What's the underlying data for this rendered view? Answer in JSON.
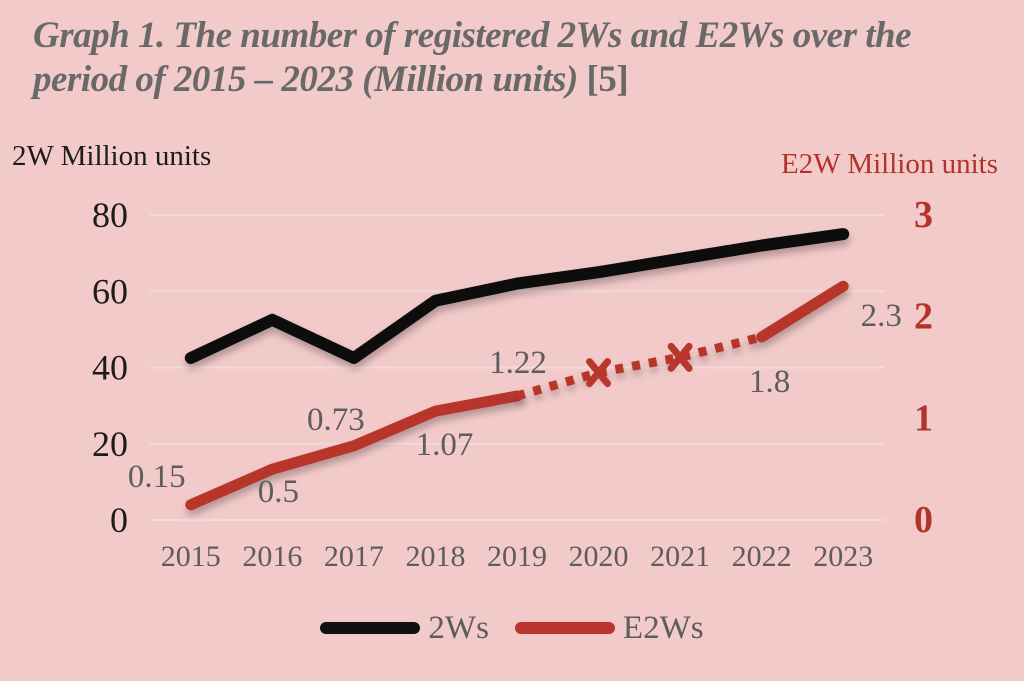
{
  "colors": {
    "background": "#f3caca",
    "gridline": "#f2dada",
    "title_gray": "#696969",
    "label_gray": "#5d5d5d",
    "black_series": "#111111",
    "red_series": "#b8362c",
    "left_axis_text": "#1c1c1c",
    "right_axis_text": "#b1332a"
  },
  "axes": {
    "left": {
      "title": "2W Million units",
      "ticks": [
        0,
        20,
        40,
        60,
        80
      ],
      "range": [
        0,
        80
      ]
    },
    "right": {
      "title": "E2W Million units",
      "ticks": [
        0,
        1,
        2,
        3
      ],
      "range": [
        0,
        3
      ]
    }
  },
  "chart_data": {
    "type": "line",
    "title": "Graph 1. The number of registered 2Ws and E2Ws over the period of 2015 – 2023 (Million units)",
    "citation": "[5]",
    "categories": [
      "2015",
      "2016",
      "2017",
      "2018",
      "2019",
      "2020",
      "2021",
      "2022",
      "2023"
    ],
    "grid": true,
    "legend_position": "bottom",
    "ylabel_left": "2W Million units",
    "ylabel_right": "E2W Million units",
    "series": [
      {
        "name": "2Ws",
        "axis": "left",
        "color": "#111111",
        "style": "solid",
        "values": [
          42.5,
          52.5,
          42.5,
          57.5,
          62,
          65,
          68.5,
          72,
          75
        ]
      },
      {
        "name": "E2Ws",
        "axis": "right",
        "color": "#b8362c",
        "style": "solid-with-dashed-segment",
        "values": [
          0.15,
          0.5,
          0.73,
          1.07,
          1.22,
          1.45,
          1.6,
          1.8,
          2.3
        ],
        "dashed_segment": {
          "from_index": 4,
          "to_index": 7
        },
        "x_marker_indices": [
          5,
          6
        ],
        "data_labels": [
          {
            "index": 0,
            "text": "0.15",
            "dx": -34,
            "dy": -28
          },
          {
            "index": 1,
            "text": "0.5",
            "dx": 6,
            "dy": 23
          },
          {
            "index": 2,
            "text": "0.73",
            "dx": -18,
            "dy": -26
          },
          {
            "index": 3,
            "text": "1.07",
            "dx": 9,
            "dy": 34
          },
          {
            "index": 4,
            "text": "1.22",
            "dx": 1,
            "dy": -33
          },
          {
            "index": 7,
            "text": "1.8",
            "dx": 8,
            "dy": 45
          },
          {
            "index": 8,
            "text": "2.3",
            "dx": 38,
            "dy": 30
          }
        ]
      }
    ]
  },
  "legend": {
    "items": [
      {
        "label": "2Ws",
        "color": "#111111"
      },
      {
        "label": "E2Ws",
        "color": "#b8362c"
      }
    ]
  }
}
